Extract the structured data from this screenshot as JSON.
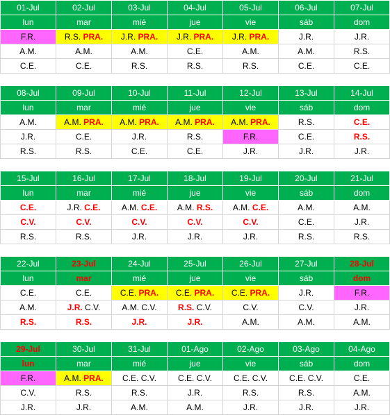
{
  "weeks": [
    {
      "dates": [
        {
          "t": "01-Jul"
        },
        {
          "t": "02-Jul"
        },
        {
          "t": "03-Jul"
        },
        {
          "t": "04-Jul"
        },
        {
          "t": "05-Jul"
        },
        {
          "t": "06-Jul"
        },
        {
          "t": "07-Jul"
        }
      ],
      "days": [
        {
          "t": "lun"
        },
        {
          "t": "mar"
        },
        {
          "t": "mié"
        },
        {
          "t": "jue"
        },
        {
          "t": "vie"
        },
        {
          "t": "sáb"
        },
        {
          "t": "dom"
        }
      ],
      "rows": [
        [
          {
            "n": "F.R.",
            "bg": "pink"
          },
          {
            "n": "R.S.",
            "r": "PRA.",
            "bg": "yellow"
          },
          {
            "n": "J.R.",
            "r": "PRA.",
            "bg": "yellow"
          },
          {
            "n": "J.R.",
            "r": "PRA.",
            "bg": "yellow"
          },
          {
            "n": "J.R.",
            "r": "PRA.",
            "bg": "yellow"
          },
          {
            "n": "J.R."
          },
          {
            "n": "J.R."
          }
        ],
        [
          {
            "n": "A.M."
          },
          {
            "n": "A.M."
          },
          {
            "n": "A.M."
          },
          {
            "n": "C.E."
          },
          {
            "n": "A.M."
          },
          {
            "n": "A.M."
          },
          {
            "n": "R.S."
          }
        ],
        [
          {
            "n": "C.E."
          },
          {
            "n": "C.E."
          },
          {
            "n": "R.S."
          },
          {
            "n": "R.S."
          },
          {
            "n": "R.S."
          },
          {
            "n": "C.E."
          },
          {
            "n": "C.E."
          }
        ]
      ]
    },
    {
      "dates": [
        {
          "t": "08-Jul"
        },
        {
          "t": "09-Jul"
        },
        {
          "t": "10-Jul"
        },
        {
          "t": "11-Jul"
        },
        {
          "t": "12-Jul"
        },
        {
          "t": "13-Jul"
        },
        {
          "t": "14-Jul"
        }
      ],
      "days": [
        {
          "t": "lun"
        },
        {
          "t": "mar"
        },
        {
          "t": "mié"
        },
        {
          "t": "jue"
        },
        {
          "t": "vie"
        },
        {
          "t": "sáb"
        },
        {
          "t": "dom"
        }
      ],
      "rows": [
        [
          {
            "n": "A.M."
          },
          {
            "n": "A.M.",
            "r": "PRA.",
            "bg": "yellow"
          },
          {
            "n": "A.M.",
            "r": "PRA.",
            "bg": "yellow"
          },
          {
            "n": "A.M.",
            "r": "PRA.",
            "bg": "yellow"
          },
          {
            "n": "A.M.",
            "r": "PRA.",
            "bg": "yellow"
          },
          {
            "n": "R.S."
          },
          {
            "r": "C.E."
          }
        ],
        [
          {
            "n": "J.R."
          },
          {
            "n": "C.E."
          },
          {
            "n": "J.R."
          },
          {
            "n": "R.S."
          },
          {
            "n": "F.R.",
            "bg": "pink"
          },
          {
            "n": "C.E."
          },
          {
            "r": "R.S."
          }
        ],
        [
          {
            "n": "R.S."
          },
          {
            "n": "R.S."
          },
          {
            "n": "C.E."
          },
          {
            "n": "C.E."
          },
          {
            "n": "J.R."
          },
          {
            "n": "J.R."
          },
          {
            "n": "J.R."
          }
        ]
      ]
    },
    {
      "dates": [
        {
          "t": "15-Jul"
        },
        {
          "t": "16-Jul"
        },
        {
          "t": "17-Jul"
        },
        {
          "t": "18-Jul"
        },
        {
          "t": "19-Jul"
        },
        {
          "t": "20-Jul"
        },
        {
          "t": "21-Jul"
        }
      ],
      "days": [
        {
          "t": "lun"
        },
        {
          "t": "mar"
        },
        {
          "t": "mié"
        },
        {
          "t": "jue"
        },
        {
          "t": "vie"
        },
        {
          "t": "sáb"
        },
        {
          "t": "dom"
        }
      ],
      "rows": [
        [
          {
            "r": "C.E."
          },
          {
            "n": "J.R.",
            "r": "C.E."
          },
          {
            "n": "A.M.",
            "r": "C.E."
          },
          {
            "n": "A.M.",
            "r": "R.S."
          },
          {
            "n": "A.M.",
            "r": "C.E."
          },
          {
            "n": "A.M."
          },
          {
            "n": "A.M."
          }
        ],
        [
          {
            "r": "C.V."
          },
          {
            "r": "C.V."
          },
          {
            "r": "C.V."
          },
          {
            "r": "C.V."
          },
          {
            "r": "C.V."
          },
          {
            "n": "C.E."
          },
          {
            "n": "J.R."
          }
        ],
        [
          {
            "n": "R.S."
          },
          {
            "n": "R.S."
          },
          {
            "n": "J.R."
          },
          {
            "n": "J.R."
          },
          {
            "n": "J.R."
          },
          {
            "n": "R.S."
          },
          {
            "n": "R.S."
          }
        ]
      ]
    },
    {
      "dates": [
        {
          "t": "22-Jul"
        },
        {
          "t": "23-Jul",
          "red": true
        },
        {
          "t": "24-Jul"
        },
        {
          "t": "25-Jul"
        },
        {
          "t": "26-Jul"
        },
        {
          "t": "27-Jul"
        },
        {
          "t": "28-Jul",
          "red": true
        }
      ],
      "days": [
        {
          "t": "lun"
        },
        {
          "t": "mar",
          "red": true
        },
        {
          "t": "mié"
        },
        {
          "t": "jue"
        },
        {
          "t": "vie"
        },
        {
          "t": "sáb"
        },
        {
          "t": "dom",
          "red": true
        }
      ],
      "rows": [
        [
          {
            "n": "C.E."
          },
          {
            "n": "C.E."
          },
          {
            "n": "C.E.",
            "r": "PRA.",
            "bg": "yellow"
          },
          {
            "n": "C.E.",
            "r": "PRA.",
            "bg": "yellow"
          },
          {
            "n": "C.E.",
            "r": "PRA.",
            "bg": "yellow"
          },
          {
            "n": "J.R."
          },
          {
            "n": "F.R.",
            "bg": "pink"
          }
        ],
        [
          {
            "n": "A.M."
          },
          {
            "r": "J.R.",
            "n2": "C.V."
          },
          {
            "n": "A.M. C.V."
          },
          {
            "r": "R.S.",
            "n2": "C.V."
          },
          {
            "n": "C.V."
          },
          {
            "n": "C.V."
          },
          {
            "n": "J.R."
          }
        ],
        [
          {
            "r": "R.S."
          },
          {
            "r": "R.S."
          },
          {
            "r": "J.R."
          },
          {
            "r": "J.R."
          },
          {
            "n": "A.M."
          },
          {
            "n": "A.M."
          },
          {
            "n": "A.M."
          }
        ]
      ]
    },
    {
      "dates": [
        {
          "t": "29-Jul",
          "red": true
        },
        {
          "t": "30-Jul"
        },
        {
          "t": "31-Jul"
        },
        {
          "t": "01-Ago"
        },
        {
          "t": "02-Ago"
        },
        {
          "t": "03-Ago"
        },
        {
          "t": "04-Ago"
        }
      ],
      "days": [
        {
          "t": "lun",
          "red": true
        },
        {
          "t": "mar"
        },
        {
          "t": "mié"
        },
        {
          "t": "jue"
        },
        {
          "t": "vie"
        },
        {
          "t": "sáb"
        },
        {
          "t": "dom"
        }
      ],
      "rows": [
        [
          {
            "n": "F.R.",
            "bg": "pink"
          },
          {
            "n": "A.M.",
            "r": "PRA.",
            "bg": "yellow"
          },
          {
            "n": "C.E. C.V."
          },
          {
            "n": "C.E. C.V."
          },
          {
            "n": "C.E. C.V."
          },
          {
            "n": "C.E. C.V."
          },
          {
            "n": "C.E."
          }
        ],
        [
          {
            "n": "C.V."
          },
          {
            "n": "R.S."
          },
          {
            "n": "R.S."
          },
          {
            "n": "J.R."
          },
          {
            "n": "R.S."
          },
          {
            "n": "R.S."
          },
          {
            "n": "A.M."
          }
        ],
        [
          {
            "n": "J.R."
          },
          {
            "n": "J.R."
          },
          {
            "n": "A.M."
          },
          {
            "n": "A.M."
          },
          {
            "n": "J.R."
          },
          {
            "n": "J.R."
          },
          {
            "n": "J.R."
          }
        ]
      ]
    }
  ]
}
